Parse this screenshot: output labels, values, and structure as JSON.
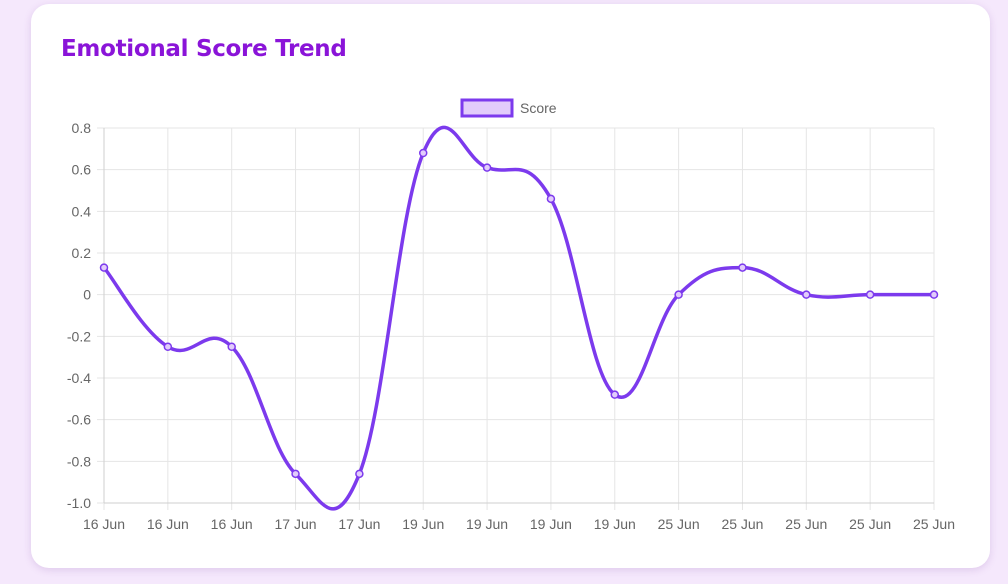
{
  "card": {
    "title": "Emotional Score Trend"
  },
  "colors": {
    "accent": "#7c3aed",
    "title": "#8a14d8",
    "legend_fill": "#e2ccfb",
    "grid": "#e5e5e5",
    "page_bg": "#f5e8fc"
  },
  "chart_data": {
    "type": "line",
    "smooth": true,
    "categories": [
      "16 Jun",
      "16 Jun",
      "16 Jun",
      "17 Jun",
      "17 Jun",
      "19 Jun",
      "19 Jun",
      "19 Jun",
      "19 Jun",
      "25 Jun",
      "25 Jun",
      "25 Jun",
      "25 Jun",
      "25 Jun"
    ],
    "series": [
      {
        "name": "Score",
        "values": [
          0.13,
          -0.25,
          -0.25,
          -0.86,
          -0.86,
          0.68,
          0.61,
          0.46,
          -0.48,
          0.0,
          0.13,
          0.0,
          0.0,
          0.0
        ]
      }
    ],
    "y_ticks": [
      "0.8",
      "0.6",
      "0.4",
      "0.2",
      "0",
      "-0.2",
      "-0.4",
      "-0.6",
      "-0.8",
      "-1.0"
    ],
    "ylim": [
      -1.0,
      0.8
    ],
    "grid": true,
    "legend": "top-center",
    "xlabel": "",
    "ylabel": ""
  }
}
